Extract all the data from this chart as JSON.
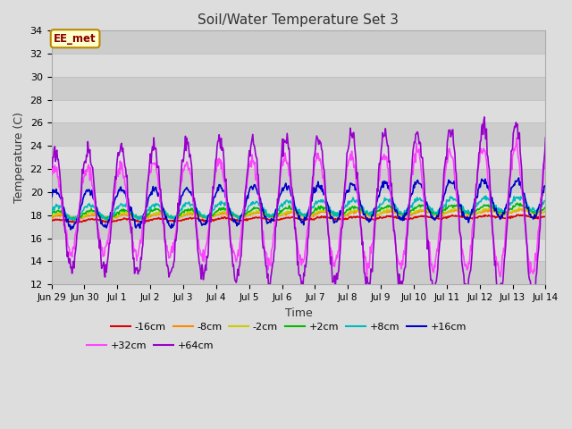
{
  "title": "Soil/Water Temperature Set 3",
  "xlabel": "Time",
  "ylabel": "Temperature (C)",
  "ylim": [
    12,
    34
  ],
  "n_days": 15,
  "x_tick_positions": [
    0,
    1,
    2,
    3,
    4,
    5,
    6,
    7,
    8,
    9,
    10,
    11,
    12,
    13,
    14,
    15
  ],
  "x_tick_labels": [
    "Jun 29",
    "Jun 30",
    "Jul 1",
    "Jul 2",
    "Jul 3",
    "Jul 4",
    "Jul 5",
    "Jul 6",
    "Jul 7",
    "Jul 8",
    "Jul 9",
    "Jul 10",
    "Jul 11",
    "Jul 12",
    "Jul 13",
    "Jul 14"
  ],
  "annotation_text": "EE_met",
  "annotation_bg": "#ffffcc",
  "annotation_border": "#bb8800",
  "colors": {
    "-16cm": "#dd0000",
    "-8cm": "#ff8800",
    "-2cm": "#cccc00",
    "+2cm": "#00bb00",
    "+8cm": "#00bbbb",
    "+16cm": "#0000cc",
    "+32cm": "#ff44ff",
    "+64cm": "#9900cc"
  }
}
